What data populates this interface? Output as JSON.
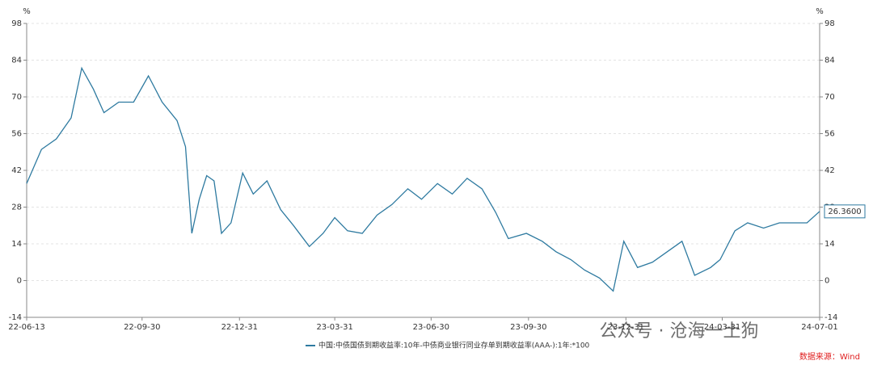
{
  "chart_data": {
    "type": "line",
    "y_unit": "%",
    "y2_unit": "%",
    "x": [
      "22-06-13",
      "22-06-27",
      "22-07-11",
      "22-07-25",
      "22-08-04",
      "22-08-15",
      "22-08-25",
      "22-09-08",
      "22-09-22",
      "22-10-06",
      "22-10-19",
      "22-11-02",
      "22-11-10",
      "22-11-16",
      "22-11-23",
      "22-11-30",
      "22-12-07",
      "22-12-14",
      "22-12-23",
      "23-01-03",
      "23-01-13",
      "23-01-26",
      "23-02-08",
      "23-02-20",
      "23-03-07",
      "23-03-20",
      "23-03-31",
      "23-04-12",
      "23-04-26",
      "23-05-10",
      "23-05-24",
      "23-06-08",
      "23-06-21",
      "23-07-06",
      "23-07-20",
      "23-08-03",
      "23-08-17",
      "23-08-30",
      "23-09-11",
      "23-09-28",
      "23-10-13",
      "23-10-26",
      "23-11-09",
      "23-11-22",
      "23-12-06",
      "23-12-19",
      "23-12-29",
      "24-01-11",
      "24-01-25",
      "24-02-08",
      "24-02-22",
      "24-03-05",
      "24-03-20",
      "24-03-29",
      "24-04-12",
      "24-04-24",
      "24-05-09",
      "24-05-24",
      "24-06-07",
      "24-06-19",
      "24-07-01"
    ],
    "series": [
      {
        "name": "中国:中债国债到期收益率:10年-中债商业银行同业存单到期收益率(AAA-):1年:*100",
        "color": "#2e7aa0",
        "values": [
          37,
          50,
          54,
          62,
          81,
          73,
          64,
          68,
          68,
          78,
          68,
          61,
          51,
          18,
          31,
          40,
          38,
          18,
          22,
          41,
          33,
          38,
          27,
          21,
          13,
          18,
          24,
          19,
          18,
          25,
          29,
          35,
          31,
          37,
          33,
          39,
          35,
          26,
          16,
          18,
          15,
          11,
          8,
          4,
          1,
          -4,
          15,
          5,
          7,
          11,
          15,
          2,
          5,
          8,
          19,
          22,
          20,
          22,
          22,
          22,
          26.36
        ],
        "value_labels": [
          null,
          null,
          null,
          null,
          null,
          null,
          null,
          null,
          null,
          null,
          null,
          null,
          null,
          null,
          null,
          null,
          null,
          null,
          null,
          null,
          null,
          null,
          null,
          null,
          null,
          null,
          null,
          null,
          null,
          null,
          null,
          null,
          null,
          null,
          null,
          null,
          null,
          null,
          null,
          null,
          null,
          null,
          null,
          null,
          null,
          null,
          null,
          null,
          null,
          null,
          null,
          null,
          null,
          null,
          null,
          null,
          null,
          null,
          null,
          null,
          "26.3600"
        ]
      }
    ],
    "xlim": [
      "22-06-13",
      "24-07-01"
    ],
    "xticks": [
      "22-06-13",
      "22-09-30",
      "22-12-31",
      "23-03-31",
      "23-06-30",
      "23-09-30",
      "23-12-31",
      "24-03-31",
      "24-07-01"
    ],
    "ylim": [
      -14,
      98
    ],
    "yticks": [
      -14,
      0,
      14,
      28,
      42,
      56,
      70,
      84,
      98
    ],
    "y2lim": [
      -14,
      98
    ],
    "y2ticks": [
      -14,
      0,
      14,
      28,
      42,
      56,
      70,
      84,
      98
    ],
    "grid": true,
    "legend": "bottom",
    "watermark": "公众号 · 沧海一土狗",
    "source": "数据来源：Wind"
  }
}
